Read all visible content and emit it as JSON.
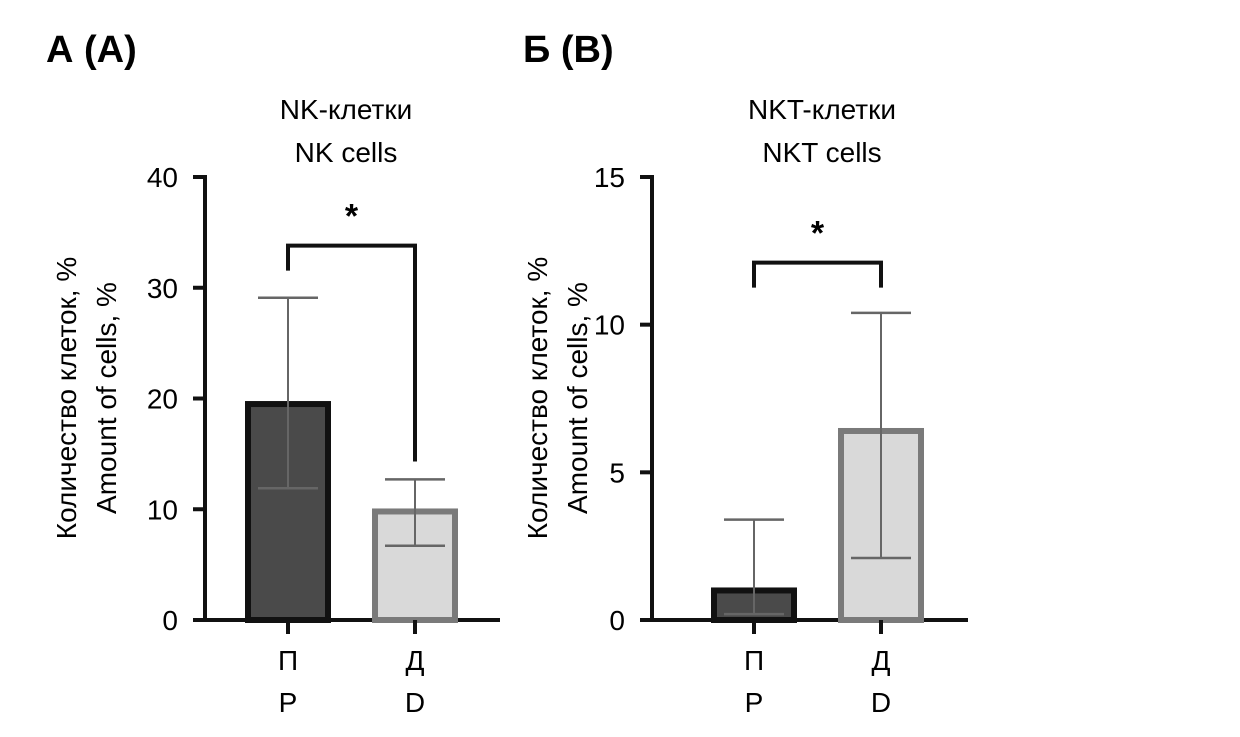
{
  "chart_data": [
    {
      "type": "bar",
      "panel_label": "А (A)",
      "title_lines": [
        "NK-клетки",
        "NK cells"
      ],
      "ylabel_lines": [
        "Количество клеток, %",
        "Amount of cells, %"
      ],
      "ylim": [
        0,
        40
      ],
      "yticks": [
        0,
        10,
        20,
        30,
        40
      ],
      "categories": [
        {
          "lines": [
            "П",
            "P"
          ]
        },
        {
          "lines": [
            "Д",
            "D"
          ]
        }
      ],
      "values": [
        19.5,
        9.8
      ],
      "error_upper": [
        29.1,
        12.7
      ],
      "error_lower": [
        11.9,
        6.7
      ],
      "bar_colors": [
        "#4a4a4a",
        "#d9d9d9"
      ],
      "bar_edge_colors": [
        "#111111",
        "#7a7a7a"
      ],
      "significance": {
        "label": "*",
        "between": [
          0,
          1
        ],
        "level": 33.8
      },
      "grid": false,
      "legend": "none"
    },
    {
      "type": "bar",
      "panel_label": "Б (B)",
      "title_lines": [
        "NKT-клетки",
        "NKT cells"
      ],
      "ylabel_lines": [
        "Количество клеток, %",
        "Amount of cells, %"
      ],
      "ylim": [
        0,
        15
      ],
      "yticks": [
        0,
        5,
        10,
        15
      ],
      "categories": [
        {
          "lines": [
            "П",
            "P"
          ]
        },
        {
          "lines": [
            "Д",
            "D"
          ]
        }
      ],
      "values": [
        1.0,
        6.4
      ],
      "error_upper": [
        3.4,
        10.4
      ],
      "error_lower": [
        0.2,
        2.1
      ],
      "bar_colors": [
        "#4a4a4a",
        "#d9d9d9"
      ],
      "bar_edge_colors": [
        "#111111",
        "#7a7a7a"
      ],
      "significance": {
        "label": "*",
        "between": [
          0,
          1
        ],
        "level": 12.1
      },
      "grid": false,
      "legend": "none"
    }
  ]
}
